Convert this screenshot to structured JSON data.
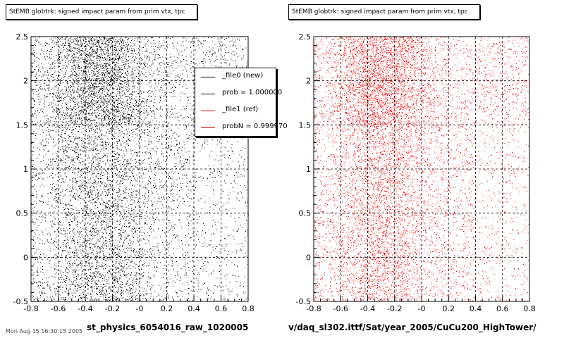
{
  "chart_data": [
    {
      "type": "scatter",
      "title": "StEMB globtrk: signed impact param from prim vtx, tpc",
      "xlabel": "st_physics_6054016_raw_1020005",
      "ylabel": "",
      "xlim": [
        -0.8,
        0.8
      ],
      "ylim": [
        -0.5,
        2.5
      ],
      "xticks": [
        "-0.8",
        "-0.6",
        "-0.4",
        "-0.2",
        "-0",
        "0.2",
        "0.4",
        "0.6",
        "0.8"
      ],
      "yticks": [
        "-0.5",
        "0",
        "0.5",
        "1",
        "1.5",
        "2",
        "2.5"
      ],
      "grid": true,
      "color": "#000000",
      "legend": {
        "placement": "top-right",
        "entries": [
          {
            "label": "_file0 (new)",
            "color": "#000000"
          },
          {
            "label": "prob = 1.000000",
            "color": "#000000"
          },
          {
            "label": "_file1 (ref)",
            "color": "#cc0000"
          },
          {
            "label": "probN = 0.999970",
            "color": "#cc0000"
          }
        ]
      }
    },
    {
      "type": "scatter",
      "title": "StEMB globtrk: signed impact param from prim vtx, tpc",
      "xlabel": "v/daq_sl302.ittf/Sat/year_2005/CuCu200_HighTower/",
      "ylabel": "",
      "xlim": [
        -0.8,
        0.8
      ],
      "ylim": [
        -0.5,
        2.5
      ],
      "xticks": [
        "-0.8",
        "-0.6",
        "-0.4",
        "-0.2",
        "-0",
        "0.2",
        "0.4",
        "0.6",
        "0.8"
      ],
      "yticks": [
        "-0.5",
        "0",
        "0.5",
        "1",
        "1.5",
        "2",
        "2.5"
      ],
      "grid": true,
      "color": "#ff0000"
    }
  ],
  "footer": "Mon Aug 15 16:30:15 2005"
}
